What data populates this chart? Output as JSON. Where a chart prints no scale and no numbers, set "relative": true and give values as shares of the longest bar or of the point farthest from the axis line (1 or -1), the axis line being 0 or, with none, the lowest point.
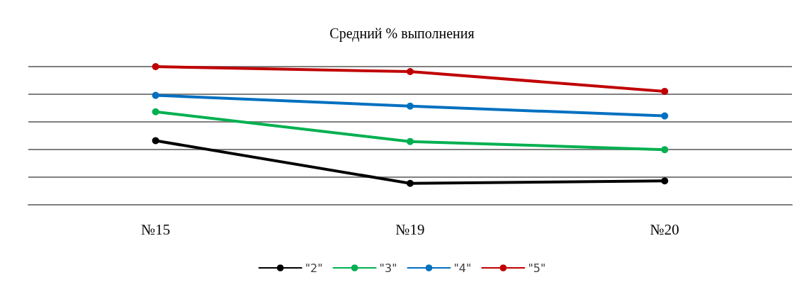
{
  "chart_data": {
    "type": "line",
    "title": "Средний % выполнения",
    "categories": [
      "№15",
      "№19",
      "№20"
    ],
    "relative": true,
    "grid": "y",
    "legend": "bottom",
    "marker": "circle",
    "series": [
      {
        "name": "\"2\"",
        "color": "#000000",
        "values": [
          0.464,
          0.155,
          0.173
        ]
      },
      {
        "name": "\"3\"",
        "color": "#00b050",
        "values": [
          0.673,
          0.458,
          0.399
        ]
      },
      {
        "name": "\"4\"",
        "color": "#0070c0",
        "values": [
          0.792,
          0.714,
          0.643
        ]
      },
      {
        "name": "\"5\"",
        "color": "#c00000",
        "values": [
          1,
          0.964,
          0.821
        ]
      }
    ]
  }
}
